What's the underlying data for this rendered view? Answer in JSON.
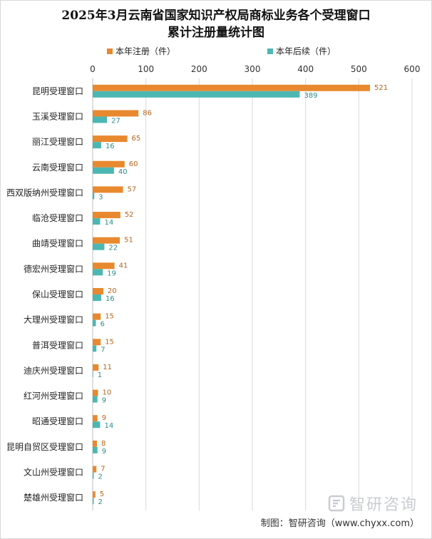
{
  "title_line1": "2025年3月云南省国家知识产权局商标业务各个受理窗口",
  "title_line2": "累计注册量统计图",
  "source": "制图：智研咨询（www.chyxx.com）",
  "watermark": "智研咨询",
  "colors": {
    "series1": "#E8892F",
    "series2": "#4CB7B2",
    "grid": "#d9d9d9"
  },
  "chart_data": {
    "type": "bar",
    "orientation": "horizontal",
    "categories": [
      "昆明受理窗口",
      "玉溪受理窗口",
      "丽江受理窗口",
      "云南受理窗口",
      "西双版纳州受理窗口",
      "临沧受理窗口",
      "曲靖受理窗口",
      "德宏州受理窗口",
      "保山受理窗口",
      "大理州受理窗口",
      "普洱受理窗口",
      "迪庆州受理窗口",
      "红河州受理窗口",
      "昭通受理窗口",
      "昆明自贸区受理窗口",
      "文山州受理窗口",
      "楚雄州受理窗口"
    ],
    "series": [
      {
        "name": "本年注册（件）",
        "values": [
          521,
          86,
          65,
          60,
          57,
          52,
          51,
          41,
          20,
          15,
          15,
          11,
          10,
          9,
          8,
          7,
          5
        ]
      },
      {
        "name": "本年后续（件）",
        "values": [
          389,
          27,
          16,
          40,
          3,
          14,
          22,
          19,
          16,
          6,
          7,
          1,
          9,
          14,
          9,
          2,
          2
        ]
      }
    ],
    "xlim": [
      0,
      600
    ],
    "xticks": [
      0,
      100,
      200,
      300,
      400,
      500,
      600
    ],
    "grid": true,
    "legend_position": "top"
  }
}
